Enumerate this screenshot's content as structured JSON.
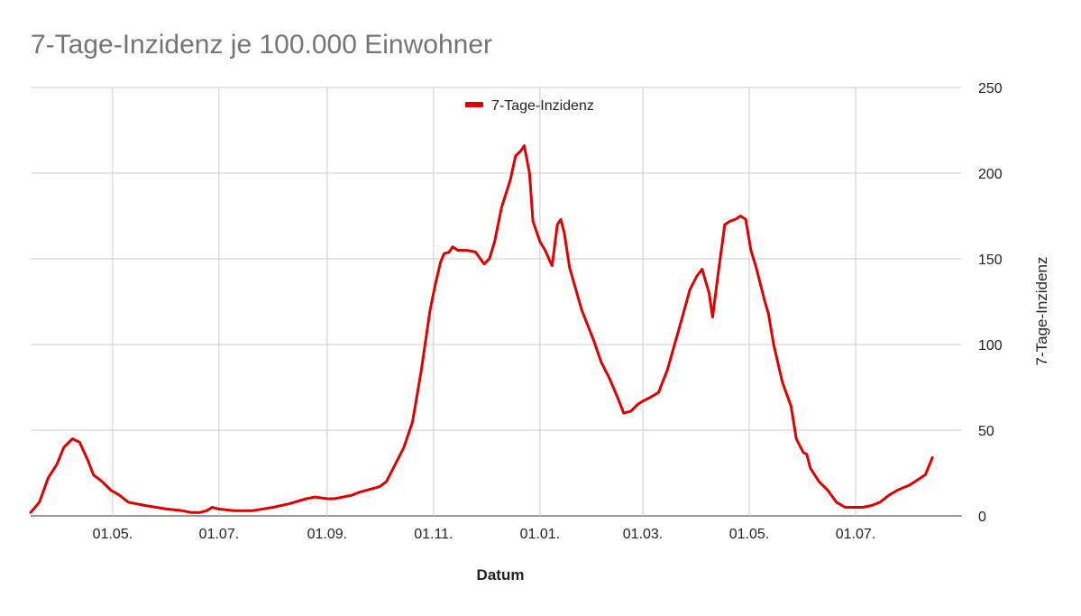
{
  "chart_data": {
    "type": "line",
    "title": "7-Tage-Inzidenz je 100.000 Einwohner",
    "xlabel": "Datum",
    "ylabel": "7-Tage-Inzidenz",
    "ylim": [
      0,
      250
    ],
    "yticks": [
      "0",
      "50",
      "100",
      "150",
      "200",
      "250"
    ],
    "xticks": [
      {
        "date": "2020-05-01",
        "label": "01.05."
      },
      {
        "date": "2020-07-01",
        "label": "01.07."
      },
      {
        "date": "2020-09-01",
        "label": "01.09."
      },
      {
        "date": "2020-11-01",
        "label": "01.11."
      },
      {
        "date": "2021-01-01",
        "label": "01.01."
      },
      {
        "date": "2021-03-01",
        "label": "01.03."
      },
      {
        "date": "2021-05-01",
        "label": "01.05."
      },
      {
        "date": "2021-07-01",
        "label": "01.07."
      }
    ],
    "xlim": [
      "2020-03-15",
      "2021-08-31"
    ],
    "grid": true,
    "legend": "top-center",
    "color": "#e00000",
    "series": [
      {
        "name": "7-Tage-Inzidenz",
        "points": [
          [
            "2020-03-15",
            2
          ],
          [
            "2020-03-20",
            8
          ],
          [
            "2020-03-25",
            22
          ],
          [
            "2020-03-30",
            30
          ],
          [
            "2020-04-03",
            40
          ],
          [
            "2020-04-08",
            45
          ],
          [
            "2020-04-12",
            43
          ],
          [
            "2020-04-17",
            32
          ],
          [
            "2020-04-20",
            24
          ],
          [
            "2020-04-25",
            20
          ],
          [
            "2020-04-30",
            15
          ],
          [
            "2020-05-05",
            12
          ],
          [
            "2020-05-10",
            8
          ],
          [
            "2020-05-20",
            6
          ],
          [
            "2020-06-01",
            4
          ],
          [
            "2020-06-10",
            3
          ],
          [
            "2020-06-15",
            2
          ],
          [
            "2020-06-20",
            2
          ],
          [
            "2020-06-24",
            3
          ],
          [
            "2020-06-27",
            5
          ],
          [
            "2020-07-01",
            4
          ],
          [
            "2020-07-10",
            3
          ],
          [
            "2020-07-20",
            3
          ],
          [
            "2020-08-01",
            5
          ],
          [
            "2020-08-10",
            7
          ],
          [
            "2020-08-20",
            10
          ],
          [
            "2020-08-25",
            11
          ],
          [
            "2020-09-01",
            10
          ],
          [
            "2020-09-05",
            10
          ],
          [
            "2020-09-15",
            12
          ],
          [
            "2020-09-20",
            14
          ],
          [
            "2020-10-01",
            17
          ],
          [
            "2020-10-05",
            20
          ],
          [
            "2020-10-10",
            30
          ],
          [
            "2020-10-15",
            40
          ],
          [
            "2020-10-20",
            55
          ],
          [
            "2020-10-25",
            85
          ],
          [
            "2020-10-30",
            120
          ],
          [
            "2020-11-02",
            135
          ],
          [
            "2020-11-05",
            148
          ],
          [
            "2020-11-07",
            153
          ],
          [
            "2020-11-10",
            154
          ],
          [
            "2020-11-12",
            157
          ],
          [
            "2020-11-15",
            155
          ],
          [
            "2020-11-20",
            155
          ],
          [
            "2020-11-25",
            154
          ],
          [
            "2020-11-30",
            147
          ],
          [
            "2020-12-03",
            150
          ],
          [
            "2020-12-06",
            160
          ],
          [
            "2020-12-10",
            180
          ],
          [
            "2020-12-15",
            196
          ],
          [
            "2020-12-18",
            210
          ],
          [
            "2020-12-21",
            213
          ],
          [
            "2020-12-23",
            216
          ],
          [
            "2020-12-26",
            200
          ],
          [
            "2020-12-28",
            172
          ],
          [
            "2021-01-01",
            160
          ],
          [
            "2021-01-04",
            155
          ],
          [
            "2021-01-07",
            148
          ],
          [
            "2021-01-08",
            146
          ],
          [
            "2021-01-11",
            170
          ],
          [
            "2021-01-13",
            173
          ],
          [
            "2021-01-15",
            165
          ],
          [
            "2021-01-18",
            145
          ],
          [
            "2021-01-25",
            120
          ],
          [
            "2021-02-01",
            102
          ],
          [
            "2021-02-05",
            90
          ],
          [
            "2021-02-10",
            80
          ],
          [
            "2021-02-15",
            68
          ],
          [
            "2021-02-18",
            60
          ],
          [
            "2021-02-22",
            61
          ],
          [
            "2021-02-26",
            65
          ],
          [
            "2021-03-01",
            67
          ],
          [
            "2021-03-05",
            69
          ],
          [
            "2021-03-10",
            72
          ],
          [
            "2021-03-15",
            85
          ],
          [
            "2021-03-22",
            110
          ],
          [
            "2021-03-28",
            132
          ],
          [
            "2021-04-01",
            140
          ],
          [
            "2021-04-04",
            144
          ],
          [
            "2021-04-08",
            130
          ],
          [
            "2021-04-10",
            116
          ],
          [
            "2021-04-13",
            140
          ],
          [
            "2021-04-17",
            170
          ],
          [
            "2021-04-20",
            172
          ],
          [
            "2021-04-23",
            173
          ],
          [
            "2021-04-26",
            175
          ],
          [
            "2021-04-29",
            173
          ],
          [
            "2021-05-02",
            155
          ],
          [
            "2021-05-05",
            145
          ],
          [
            "2021-05-10",
            125
          ],
          [
            "2021-05-12",
            118
          ],
          [
            "2021-05-15",
            100
          ],
          [
            "2021-05-20",
            78
          ],
          [
            "2021-05-25",
            64
          ],
          [
            "2021-05-28",
            45
          ],
          [
            "2021-06-01",
            37
          ],
          [
            "2021-06-03",
            36
          ],
          [
            "2021-06-05",
            28
          ],
          [
            "2021-06-10",
            20
          ],
          [
            "2021-06-15",
            15
          ],
          [
            "2021-06-20",
            8
          ],
          [
            "2021-06-25",
            5
          ],
          [
            "2021-07-01",
            5
          ],
          [
            "2021-07-05",
            5
          ],
          [
            "2021-07-10",
            6
          ],
          [
            "2021-07-15",
            8
          ],
          [
            "2021-07-20",
            12
          ],
          [
            "2021-07-25",
            15
          ],
          [
            "2021-08-01",
            18
          ],
          [
            "2021-08-10",
            24
          ],
          [
            "2021-08-14",
            34
          ]
        ]
      }
    ]
  }
}
